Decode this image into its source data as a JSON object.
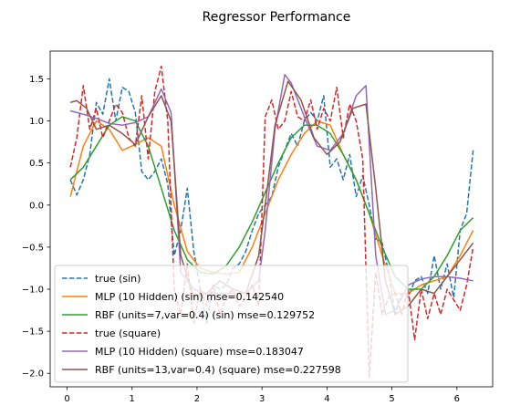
{
  "chart_data": {
    "type": "line",
    "title": "Regressor Performance",
    "xlabel": "",
    "ylabel": "",
    "xlim": [
      -0.26,
      6.55
    ],
    "ylim": [
      -2.16,
      1.83
    ],
    "xticks": [
      0,
      1,
      2,
      3,
      4,
      5,
      6
    ],
    "xtick_labels": [
      "0",
      "1",
      "2",
      "3",
      "4",
      "5",
      "6"
    ],
    "yticks": [
      -2.0,
      -1.5,
      -1.0,
      -0.5,
      0.0,
      0.5,
      1.0,
      1.5
    ],
    "ytick_labels": [
      "−2.0",
      "−1.5",
      "−1.0",
      "−0.5",
      "0.0",
      "0.5",
      "1.0",
      "1.5"
    ],
    "grid": false,
    "legend_position": "lower-left",
    "series": [
      {
        "name": "true (sin)",
        "color": "#1f77b4",
        "dash": "dashed",
        "x": [
          0.05,
          0.15,
          0.25,
          0.35,
          0.45,
          0.55,
          0.65,
          0.75,
          0.85,
          0.95,
          1.05,
          1.15,
          1.25,
          1.35,
          1.45,
          1.55,
          1.65,
          1.75,
          1.85,
          1.95,
          2.05,
          2.15,
          2.25,
          2.35,
          2.45,
          2.55,
          2.65,
          2.75,
          2.85,
          2.95,
          3.05,
          3.15,
          3.25,
          3.35,
          3.45,
          3.55,
          3.65,
          3.75,
          3.85,
          3.95,
          4.05,
          4.15,
          4.25,
          4.35,
          4.45,
          4.55,
          4.65,
          4.75,
          4.85,
          4.95,
          5.05,
          5.15,
          5.25,
          5.35,
          5.45,
          5.55,
          5.65,
          5.75,
          5.85,
          5.95,
          6.05,
          6.15,
          6.25
        ],
        "y": [
          0.3,
          0.12,
          0.3,
          0.6,
          1.22,
          1.08,
          1.5,
          1.0,
          1.4,
          1.35,
          1.1,
          0.4,
          0.3,
          0.4,
          0.55,
          0.25,
          -0.6,
          -0.3,
          0.2,
          -0.55,
          -1.0,
          -1.4,
          -0.95,
          -1.0,
          -0.95,
          -0.75,
          -0.7,
          -0.55,
          -0.3,
          -0.1,
          0.0,
          0.1,
          0.45,
          0.65,
          0.85,
          0.7,
          1.0,
          1.1,
          1.0,
          1.3,
          0.45,
          0.55,
          0.3,
          0.6,
          0.1,
          0.35,
          0.0,
          -0.4,
          -0.45,
          -0.8,
          -1.3,
          -1.05,
          -1.1,
          -0.9,
          -0.85,
          -1.05,
          -0.6,
          -1.0,
          -0.7,
          -1.1,
          -0.3,
          -0.1,
          0.65
        ]
      },
      {
        "name": "MLP (10 Hidden) (sin) mse=0.142540",
        "color": "#ff7f0e",
        "dash": "solid",
        "x": [
          0.05,
          0.25,
          0.45,
          0.65,
          0.85,
          1.05,
          1.25,
          1.45,
          1.65,
          1.85,
          2.05,
          2.25,
          2.45,
          2.65,
          2.85,
          3.05,
          3.25,
          3.45,
          3.65,
          3.85,
          4.05,
          4.25,
          4.45,
          4.65,
          4.85,
          5.05,
          5.25,
          5.45,
          5.65,
          5.85,
          6.05,
          6.25
        ],
        "y": [
          0.1,
          0.7,
          1.0,
          0.9,
          0.65,
          0.72,
          0.8,
          0.7,
          0.0,
          -0.55,
          -0.75,
          -0.8,
          -0.82,
          -0.8,
          -0.5,
          -0.1,
          0.3,
          0.6,
          0.85,
          1.0,
          0.95,
          0.6,
          0.3,
          -0.1,
          -0.6,
          -1.05,
          -1.05,
          -0.95,
          -0.9,
          -0.85,
          -0.6,
          -0.3
        ]
      },
      {
        "name": "RBF (units=7,var=0.4) (sin) mse=0.129752",
        "color": "#2ca02c",
        "dash": "solid",
        "x": [
          0.05,
          0.25,
          0.45,
          0.65,
          0.85,
          1.05,
          1.25,
          1.45,
          1.65,
          1.85,
          2.05,
          2.25,
          2.45,
          2.65,
          2.85,
          3.05,
          3.25,
          3.45,
          3.65,
          3.85,
          4.05,
          4.25,
          4.45,
          4.65,
          4.85,
          5.05,
          5.25,
          5.45,
          5.65,
          5.85,
          6.05,
          6.25
        ],
        "y": [
          0.3,
          0.45,
          0.7,
          0.95,
          1.05,
          1.0,
          0.7,
          0.2,
          -0.3,
          -0.65,
          -0.8,
          -0.82,
          -0.72,
          -0.5,
          -0.2,
          0.15,
          0.5,
          0.8,
          0.95,
          0.95,
          0.85,
          0.6,
          0.3,
          -0.1,
          -0.5,
          -0.85,
          -1.0,
          -1.0,
          -0.85,
          -0.6,
          -0.3,
          -0.15
        ]
      },
      {
        "name": "true (square)",
        "color": "#d62728",
        "dash": "dashed",
        "x": [
          0.05,
          0.15,
          0.25,
          0.35,
          0.45,
          0.55,
          0.65,
          0.75,
          0.85,
          0.95,
          1.05,
          1.15,
          1.25,
          1.35,
          1.45,
          1.55,
          1.65,
          1.75,
          1.85,
          1.95,
          2.05,
          2.15,
          2.25,
          2.35,
          2.45,
          2.55,
          2.65,
          2.75,
          2.85,
          2.95,
          3.05,
          3.15,
          3.25,
          3.35,
          3.45,
          3.55,
          3.65,
          3.75,
          3.85,
          3.95,
          4.05,
          4.15,
          4.25,
          4.35,
          4.45,
          4.55,
          4.65,
          4.75,
          4.85,
          4.95,
          5.05,
          5.15,
          5.25,
          5.35,
          5.45,
          5.55,
          5.65,
          5.75,
          5.85,
          6.05,
          6.15,
          6.25
        ],
        "y": [
          0.45,
          0.8,
          1.42,
          0.9,
          1.15,
          0.8,
          1.0,
          1.2,
          1.1,
          0.8,
          0.7,
          1.3,
          0.55,
          1.35,
          1.65,
          1.0,
          -1.0,
          -1.3,
          -0.7,
          -1.4,
          -1.0,
          -1.2,
          -0.95,
          -1.3,
          -1.1,
          -1.0,
          -1.2,
          -1.1,
          -0.95,
          -1.2,
          1.05,
          1.25,
          0.9,
          1.0,
          1.35,
          1.05,
          1.0,
          1.25,
          0.9,
          1.15,
          1.0,
          1.4,
          0.8,
          1.2,
          1.0,
          0.55,
          -2.05,
          -0.8,
          -1.3,
          -1.1,
          -1.05,
          -1.3,
          -1.0,
          -1.6,
          -1.0,
          -1.35,
          -1.05,
          -1.3,
          -1.0,
          -1.25,
          -0.95,
          -0.5
        ]
      },
      {
        "name": "MLP (10 Hidden) (square) mse=0.183047",
        "color": "#9467bd",
        "dash": "solid",
        "x": [
          0.05,
          0.25,
          0.45,
          0.65,
          0.85,
          1.05,
          1.25,
          1.45,
          1.6,
          1.75,
          1.95,
          2.15,
          2.35,
          2.55,
          2.75,
          2.95,
          3.05,
          3.2,
          3.35,
          3.45,
          3.65,
          3.85,
          4.05,
          4.25,
          4.45,
          4.6,
          4.75,
          4.9,
          5.05,
          5.25,
          5.45,
          5.65,
          5.85,
          6.05,
          6.25
        ],
        "y": [
          1.12,
          1.08,
          1.03,
          0.97,
          0.95,
          0.98,
          1.05,
          1.38,
          1.1,
          -0.8,
          -1.0,
          -1.05,
          -1.05,
          -1.05,
          -1.05,
          -0.9,
          -0.3,
          0.9,
          1.55,
          1.45,
          1.05,
          0.7,
          0.65,
          0.85,
          1.3,
          1.42,
          -0.6,
          -1.3,
          -1.25,
          -0.95,
          -0.88,
          -0.85,
          -0.85,
          -0.87,
          -0.9
        ]
      },
      {
        "name": "RBF (units=13,var=0.4) (square) mse=0.227598",
        "color": "#8c564b",
        "dash": "solid",
        "x": [
          0.05,
          0.15,
          0.3,
          0.45,
          0.65,
          0.85,
          1.05,
          1.25,
          1.45,
          1.6,
          1.75,
          1.95,
          2.15,
          2.35,
          2.55,
          2.75,
          2.95,
          3.05,
          3.2,
          3.4,
          3.6,
          3.8,
          4.0,
          4.2,
          4.4,
          4.6,
          4.75,
          4.9,
          5.05,
          5.25,
          5.45,
          5.65,
          5.85,
          6.05,
          6.25
        ],
        "y": [
          1.22,
          1.24,
          1.15,
          0.9,
          0.95,
          0.85,
          0.72,
          1.05,
          1.3,
          1.0,
          -0.6,
          -1.1,
          -1.05,
          -0.9,
          -1.0,
          -1.05,
          -0.6,
          0.0,
          0.95,
          1.47,
          1.25,
          0.8,
          0.6,
          0.75,
          1.15,
          1.2,
          0.2,
          -0.9,
          -1.3,
          -1.2,
          -1.0,
          -1.05,
          -0.85,
          -0.65,
          -0.45
        ]
      }
    ]
  }
}
